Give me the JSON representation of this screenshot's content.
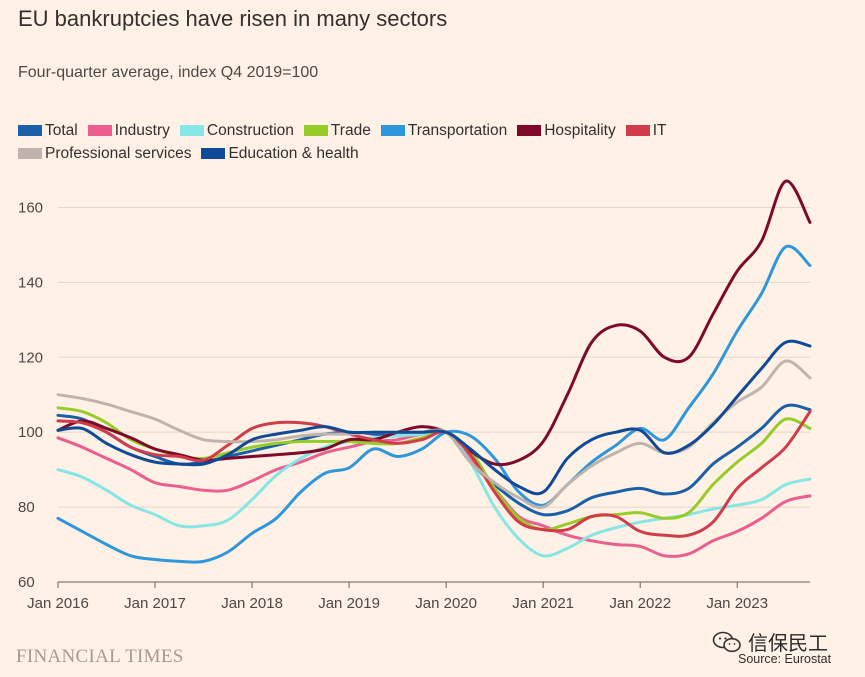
{
  "header": {
    "title": "EU bankruptcies have risen in many sectors",
    "subtitle": "Four-quarter average, index Q4 2019=100"
  },
  "footer": {
    "brand": "FINANCIAL TIMES",
    "source": "Source: Eurostat",
    "watermark": "信保民工"
  },
  "chart_data": {
    "type": "line",
    "title": "EU bankruptcies have risen in many sectors",
    "subtitle": "Four-quarter average, index Q4 2019=100",
    "xlabel": "",
    "ylabel": "",
    "ylim": [
      60,
      170
    ],
    "yticks": [
      60,
      80,
      100,
      120,
      140,
      160
    ],
    "xlim": [
      2016.0,
      2023.75
    ],
    "xticks": [
      2016,
      2017,
      2018,
      2019,
      2020,
      2021,
      2022,
      2023
    ],
    "xtick_labels": [
      "Jan 2016",
      "Jan 2017",
      "Jan 2018",
      "Jan 2019",
      "Jan 2020",
      "Jan 2021",
      "Jan 2022",
      "Jan 2023"
    ],
    "grid": "horizontal",
    "legend_position": "top",
    "x": [
      2016.0,
      2016.25,
      2016.5,
      2016.75,
      2017.0,
      2017.25,
      2017.5,
      2017.75,
      2018.0,
      2018.25,
      2018.5,
      2018.75,
      2019.0,
      2019.25,
      2019.5,
      2019.75,
      2020.0,
      2020.25,
      2020.5,
      2020.75,
      2021.0,
      2021.25,
      2021.5,
      2021.75,
      2022.0,
      2022.25,
      2022.5,
      2022.75,
      2023.0,
      2023.25,
      2023.5,
      2023.75
    ],
    "series": [
      {
        "name": "Total",
        "color": "#1a5fa8",
        "values": [
          104.5,
          103.5,
          100,
          96,
          93.5,
          91.5,
          92,
          93.5,
          95,
          96.5,
          98,
          99.5,
          100,
          99.5,
          99,
          100,
          100,
          92,
          86,
          81,
          78,
          79,
          82.5,
          84,
          85,
          83.5,
          85,
          91.5,
          96,
          101,
          107,
          106
        ]
      },
      {
        "name": "Industry",
        "color": "#eb5e8d",
        "values": [
          98.5,
          96,
          93,
          90,
          86.5,
          85.5,
          84.5,
          84.5,
          87,
          90,
          92,
          94.5,
          96,
          97.5,
          98,
          99.5,
          100,
          93,
          85,
          77.5,
          75,
          72.5,
          71,
          70,
          69.5,
          67,
          67.5,
          71,
          73.5,
          77,
          81.5,
          83
        ]
      },
      {
        "name": "Construction",
        "color": "#86e5e5",
        "values": [
          90,
          88,
          84.5,
          80.5,
          78,
          75,
          75,
          76.5,
          82,
          88.5,
          93,
          96,
          97.5,
          98.5,
          99,
          99.5,
          100,
          92,
          80,
          71.5,
          67,
          69,
          72.5,
          74.5,
          76,
          77,
          78,
          79.5,
          80.5,
          82,
          86,
          87.5
        ]
      },
      {
        "name": "Trade",
        "color": "#96cc28",
        "values": [
          106.5,
          105.5,
          102.5,
          98,
          95.5,
          93.5,
          93,
          94.5,
          96,
          97,
          97.5,
          97.5,
          97.5,
          97,
          97,
          98.5,
          100,
          95,
          85,
          77,
          74,
          75.5,
          77.5,
          78,
          78.5,
          77,
          78.5,
          86,
          92,
          97,
          103.5,
          101
        ]
      },
      {
        "name": "Transportation",
        "color": "#2e97dc",
        "values": [
          77,
          73.5,
          70,
          67,
          66,
          65.5,
          65.5,
          68,
          73,
          77,
          84,
          89,
          90.5,
          95.5,
          93.5,
          95.5,
          100,
          99,
          93,
          84,
          80.5,
          86,
          92,
          96.5,
          101,
          98,
          106.5,
          115.5,
          127,
          137,
          149.5,
          144.5
        ]
      },
      {
        "name": "Hospitality",
        "color": "#7d0a2b",
        "values": [
          100.5,
          103,
          101,
          98.5,
          95.5,
          94,
          92.5,
          93,
          93.5,
          94,
          94.5,
          95.5,
          98,
          98,
          100,
          101.5,
          100,
          95,
          91.5,
          92.5,
          97.5,
          110,
          124,
          128.5,
          127,
          120,
          120,
          131.5,
          143,
          151,
          167,
          156
        ]
      },
      {
        "name": "IT",
        "color": "#d13c4a",
        "values": [
          103,
          102.5,
          100,
          96,
          94,
          93.5,
          92.5,
          96.5,
          101,
          102.5,
          102.5,
          101.5,
          99.5,
          98,
          97,
          98,
          100,
          94,
          84,
          76,
          74,
          74,
          77.5,
          77.5,
          73.5,
          72.5,
          72.5,
          76,
          85,
          90.5,
          96,
          105.5
        ]
      },
      {
        "name": "Professional services",
        "color": "#bfb3ac",
        "values": [
          110,
          109,
          107.5,
          105.5,
          103.5,
          100.5,
          98,
          97.5,
          97.5,
          98,
          99,
          99.5,
          99.5,
          100,
          100,
          100,
          100,
          92,
          86.5,
          82.5,
          80,
          86,
          91,
          94.5,
          97,
          94.5,
          96,
          102.5,
          108,
          112,
          119,
          114.5
        ]
      },
      {
        "name": "Education & health",
        "color": "#0f4a96",
        "values": [
          100.5,
          101,
          97,
          94,
          92,
          91.5,
          91.5,
          94,
          98,
          99.5,
          100.5,
          101.5,
          100,
          100,
          100,
          100,
          100,
          95.5,
          90,
          85.5,
          84,
          93,
          98,
          100,
          100.5,
          94.5,
          96.5,
          102,
          109.5,
          117,
          124,
          123
        ]
      }
    ]
  }
}
